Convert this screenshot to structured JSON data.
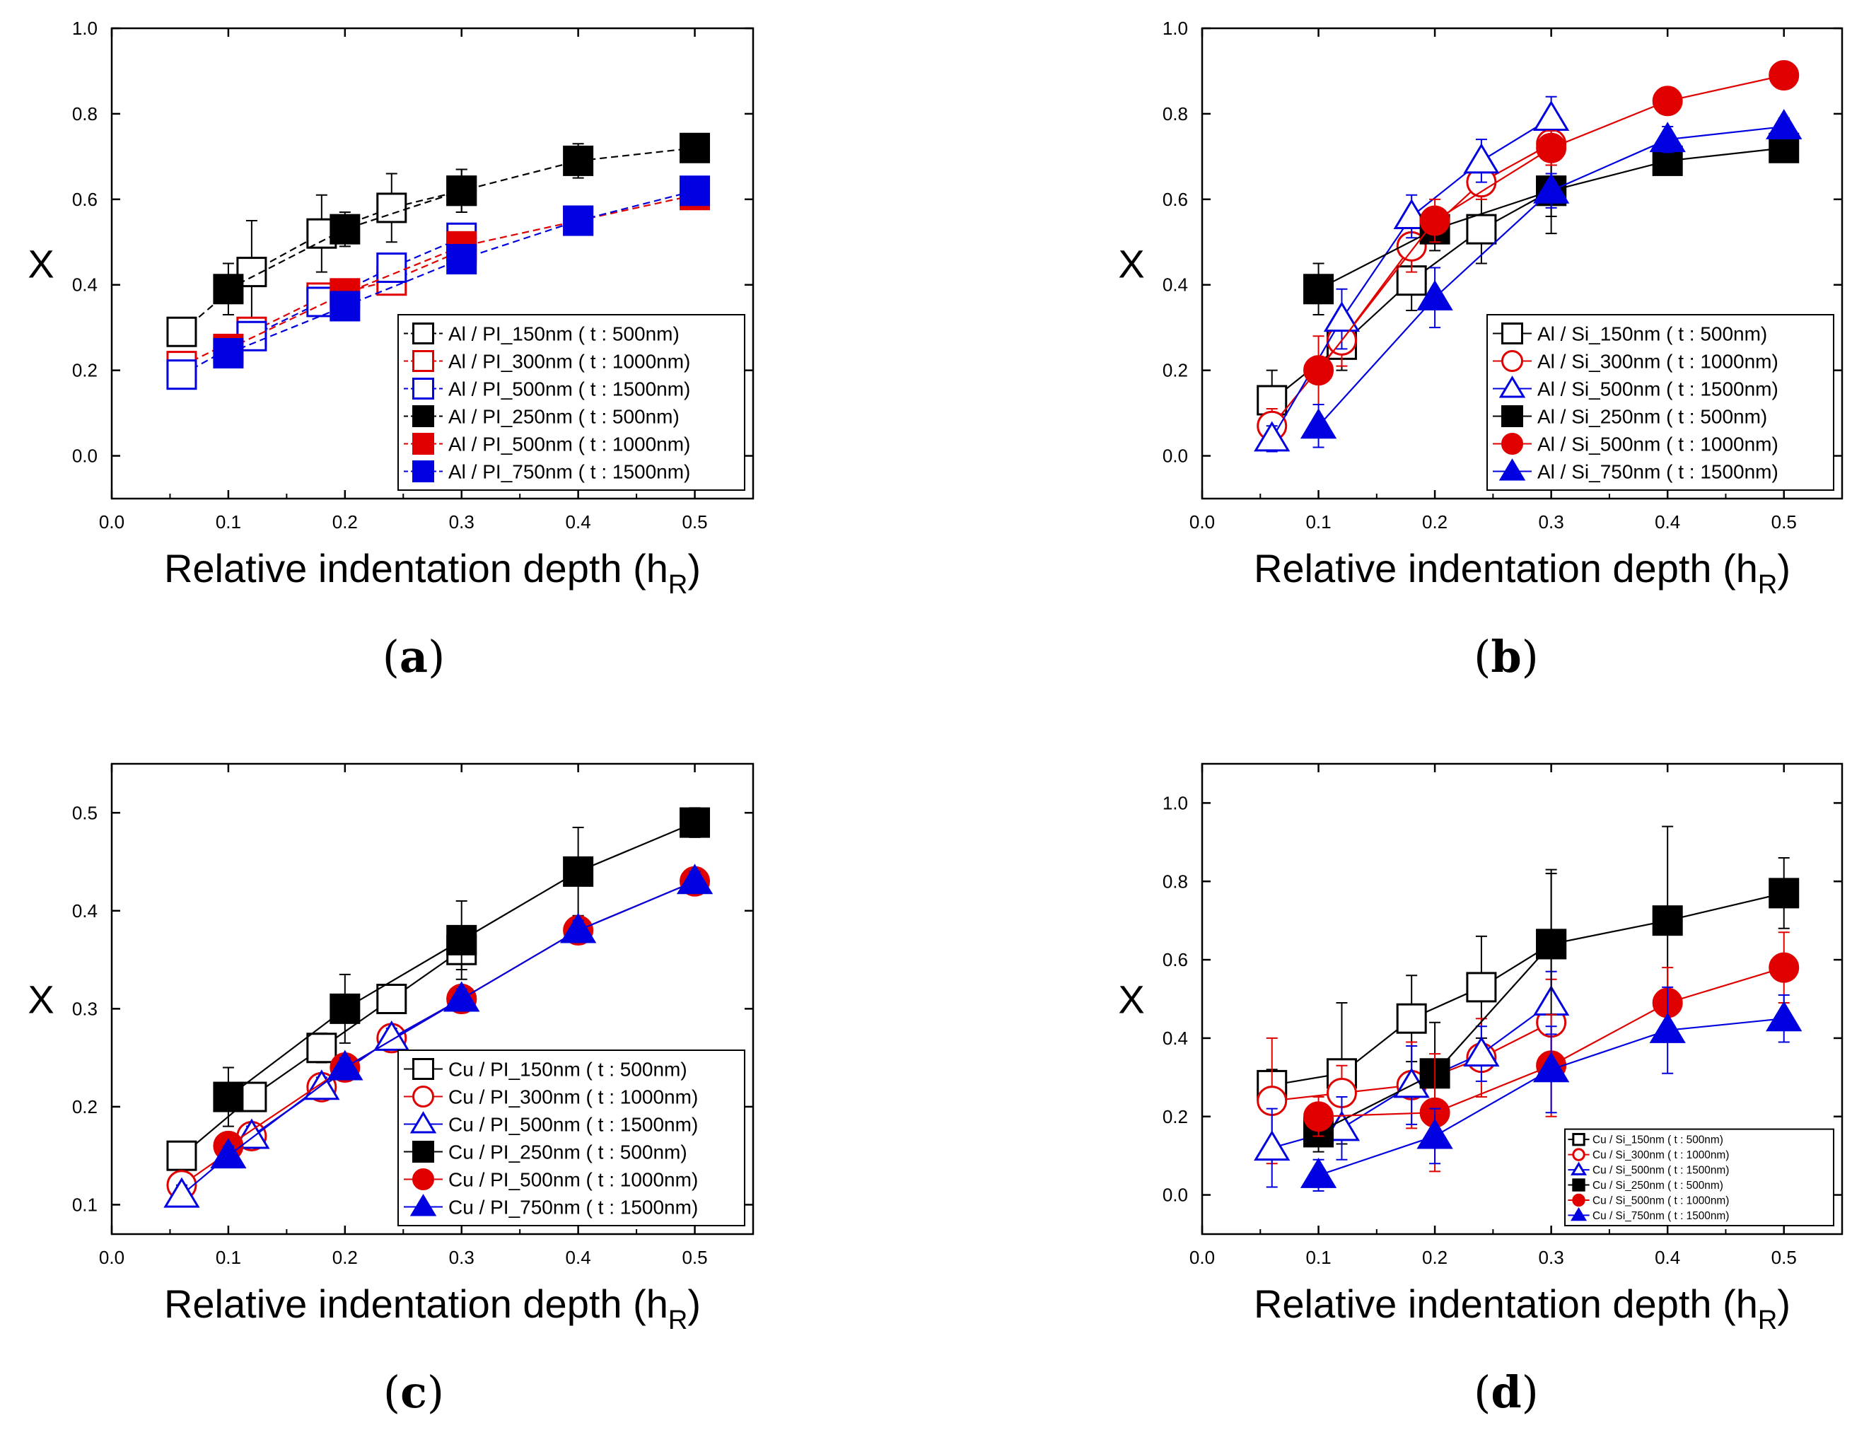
{
  "chart_data": [
    {
      "panel_label": "a",
      "type": "line",
      "xlabel": "Relative indentation depth (h",
      "xlabel_sub": "R",
      "xlabel_close": ")",
      "ylabel": "X",
      "xlim": [
        0.0,
        0.55
      ],
      "ylim": [
        -0.1,
        1.0
      ],
      "xticks": [
        "0.0",
        "0.1",
        "0.2",
        "0.3",
        "0.4",
        "0.5"
      ],
      "yticks": [
        "0.0",
        "0.2",
        "0.4",
        "0.6",
        "0.8",
        "1.0"
      ],
      "xtick_values": [
        0.0,
        0.1,
        0.2,
        0.3,
        0.4,
        0.5
      ],
      "ytick_values": [
        0.0,
        0.2,
        0.4,
        0.6,
        0.8,
        1.0
      ],
      "legend_scale": 1.0,
      "legend_position": "bottom-right",
      "series": [
        {
          "name": "Al / PI_150nm ( t : 500nm)",
          "color": "#000000",
          "marker": "square",
          "filled": false,
          "dashed": true,
          "x": [
            0.06,
            0.12,
            0.18,
            0.24,
            0.3
          ],
          "y": [
            0.29,
            0.43,
            0.52,
            0.58,
            0.62
          ],
          "err": [
            0.02,
            0.12,
            0.09,
            0.08,
            0.05
          ]
        },
        {
          "name": "Al / PI_300nm ( t : 1000nm)",
          "color": "#e00000",
          "marker": "square",
          "filled": false,
          "dashed": true,
          "x": [
            0.06,
            0.12,
            0.18,
            0.24,
            0.3
          ],
          "y": [
            0.21,
            0.29,
            0.37,
            0.41,
            0.48
          ],
          "err": [
            0.03,
            0.02,
            0.03,
            0.02,
            0.03
          ]
        },
        {
          "name": "Al / PI_500nm ( t : 1500nm)",
          "color": "#0000e0",
          "marker": "square",
          "filled": false,
          "dashed": true,
          "x": [
            0.06,
            0.12,
            0.18,
            0.24,
            0.3
          ],
          "y": [
            0.19,
            0.28,
            0.36,
            0.44,
            0.51
          ],
          "err": [
            0.02,
            0.02,
            0.03,
            0.02,
            0.03
          ]
        },
        {
          "name": "Al / PI_250nm ( t : 500nm)",
          "color": "#000000",
          "marker": "square",
          "filled": true,
          "dashed": true,
          "x": [
            0.1,
            0.2,
            0.3,
            0.4,
            0.5
          ],
          "y": [
            0.39,
            0.53,
            0.62,
            0.69,
            0.72
          ],
          "err": [
            0.06,
            0.04,
            0.05,
            0.04,
            0.02
          ]
        },
        {
          "name": "Al / PI_500nm ( t : 1000nm)",
          "color": "#e00000",
          "marker": "square",
          "filled": true,
          "dashed": true,
          "x": [
            0.1,
            0.2,
            0.3,
            0.4,
            0.5
          ],
          "y": [
            0.25,
            0.38,
            0.49,
            0.55,
            0.61
          ],
          "err": [
            0.03,
            0.02,
            0.03,
            0.02,
            0.01
          ]
        },
        {
          "name": "Al / PI_750nm ( t : 1500nm)",
          "color": "#0000e0",
          "marker": "square",
          "filled": true,
          "dashed": true,
          "x": [
            0.1,
            0.2,
            0.3,
            0.4,
            0.5
          ],
          "y": [
            0.24,
            0.35,
            0.46,
            0.55,
            0.62
          ],
          "err": [
            0.02,
            0.02,
            0.02,
            0.01,
            0.01
          ]
        }
      ]
    },
    {
      "panel_label": "b",
      "type": "line",
      "xlabel": "Relative indentation depth (h",
      "xlabel_sub": "R",
      "xlabel_close": ")",
      "ylabel": "X",
      "xlim": [
        0.0,
        0.55
      ],
      "ylim": [
        -0.1,
        1.0
      ],
      "xticks": [
        "0.0",
        "0.1",
        "0.2",
        "0.3",
        "0.4",
        "0.5"
      ],
      "yticks": [
        "0.0",
        "0.2",
        "0.4",
        "0.6",
        "0.8",
        "1.0"
      ],
      "xtick_values": [
        0.0,
        0.1,
        0.2,
        0.3,
        0.4,
        0.5
      ],
      "ytick_values": [
        0.0,
        0.2,
        0.4,
        0.6,
        0.8,
        1.0
      ],
      "legend_scale": 1.0,
      "legend_position": "bottom-right",
      "series": [
        {
          "name": "Al / Si_150nm ( t : 500nm)",
          "color": "#000000",
          "marker": "square",
          "filled": false,
          "dashed": false,
          "x": [
            0.06,
            0.12,
            0.18,
            0.24,
            0.3
          ],
          "y": [
            0.13,
            0.26,
            0.41,
            0.53,
            0.62
          ],
          "err": [
            0.07,
            0.06,
            0.07,
            0.08,
            0.1
          ]
        },
        {
          "name": "Al / Si_300nm ( t : 1000nm)",
          "color": "#e00000",
          "marker": "circle",
          "filled": false,
          "dashed": false,
          "x": [
            0.06,
            0.12,
            0.18,
            0.24,
            0.3
          ],
          "y": [
            0.07,
            0.27,
            0.49,
            0.64,
            0.73
          ],
          "err": [
            0.04,
            0.06,
            0.06,
            0.04,
            0.05
          ]
        },
        {
          "name": "Al / Si_500nm ( t : 1500nm)",
          "color": "#0000e0",
          "marker": "triangle",
          "filled": false,
          "dashed": false,
          "x": [
            0.06,
            0.12,
            0.18,
            0.24,
            0.3
          ],
          "y": [
            0.04,
            0.32,
            0.56,
            0.69,
            0.79
          ],
          "err": [
            0.03,
            0.07,
            0.05,
            0.05,
            0.05
          ]
        },
        {
          "name": "Al / Si_250nm ( t : 500nm)",
          "color": "#000000",
          "marker": "square",
          "filled": true,
          "dashed": false,
          "x": [
            0.1,
            0.2,
            0.3,
            0.4,
            0.5
          ],
          "y": [
            0.39,
            0.53,
            0.62,
            0.69,
            0.72
          ],
          "err": [
            0.06,
            0.05,
            0.06,
            0.03,
            0.02
          ]
        },
        {
          "name": "Al / Si_500nm ( t : 1000nm)",
          "color": "#e00000",
          "marker": "circle",
          "filled": true,
          "dashed": false,
          "x": [
            0.1,
            0.2,
            0.3,
            0.4,
            0.5
          ],
          "y": [
            0.2,
            0.55,
            0.72,
            0.83,
            0.89
          ],
          "err": [
            0.08,
            0.05,
            0.04,
            0.02,
            0.02
          ]
        },
        {
          "name": "Al / Si_750nm ( t : 1500nm)",
          "color": "#0000e0",
          "marker": "triangle",
          "filled": true,
          "dashed": false,
          "x": [
            0.1,
            0.2,
            0.3,
            0.4,
            0.5
          ],
          "y": [
            0.07,
            0.37,
            0.62,
            0.74,
            0.77
          ],
          "err": [
            0.05,
            0.07,
            0.04,
            0.03,
            0.02
          ]
        }
      ]
    },
    {
      "panel_label": "c",
      "type": "line",
      "xlabel": "Relative indentation depth (h",
      "xlabel_sub": "R",
      "xlabel_close": ")",
      "ylabel": "X",
      "xlim": [
        0.0,
        0.55
      ],
      "ylim": [
        0.07,
        0.55
      ],
      "xticks": [
        "0.0",
        "0.1",
        "0.2",
        "0.3",
        "0.4",
        "0.5"
      ],
      "yticks": [
        "0.1",
        "0.2",
        "0.3",
        "0.4",
        "0.5"
      ],
      "xtick_values": [
        0.0,
        0.1,
        0.2,
        0.3,
        0.4,
        0.5
      ],
      "ytick_values": [
        0.1,
        0.2,
        0.3,
        0.4,
        0.5
      ],
      "legend_scale": 1.0,
      "legend_position": "bottom-right",
      "series": [
        {
          "name": "Cu / PI_150nm ( t : 500nm)",
          "color": "#000000",
          "marker": "square",
          "filled": false,
          "dashed": false,
          "x": [
            0.06,
            0.12,
            0.18,
            0.24,
            0.3
          ],
          "y": [
            0.15,
            0.21,
            0.26,
            0.31,
            0.36
          ],
          "err": [
            0.01,
            0.01,
            0.015,
            0.01,
            0.02
          ]
        },
        {
          "name": "Cu / PI_300nm ( t : 1000nm)",
          "color": "#e00000",
          "marker": "circle",
          "filled": false,
          "dashed": false,
          "x": [
            0.06,
            0.12,
            0.18,
            0.24,
            0.3
          ],
          "y": [
            0.12,
            0.17,
            0.22,
            0.27,
            0.31
          ],
          "err": [
            0.01,
            0.01,
            0.01,
            0.01,
            0.01
          ]
        },
        {
          "name": "Cu / PI_500nm ( t : 1500nm)",
          "color": "#0000e0",
          "marker": "triangle",
          "filled": false,
          "dashed": false,
          "x": [
            0.06,
            0.12,
            0.18,
            0.24,
            0.3
          ],
          "y": [
            0.11,
            0.17,
            0.22,
            0.27,
            0.31
          ],
          "err": [
            0.01,
            0.01,
            0.01,
            0.01,
            0.01
          ]
        },
        {
          "name": "Cu / PI_250nm ( t : 500nm)",
          "color": "#000000",
          "marker": "square",
          "filled": true,
          "dashed": false,
          "x": [
            0.1,
            0.2,
            0.3,
            0.4,
            0.5
          ],
          "y": [
            0.21,
            0.3,
            0.37,
            0.44,
            0.49
          ],
          "err": [
            0.03,
            0.035,
            0.04,
            0.045,
            0.015
          ]
        },
        {
          "name": "Cu / PI_500nm ( t : 1000nm)",
          "color": "#e00000",
          "marker": "circle",
          "filled": true,
          "dashed": false,
          "x": [
            0.1,
            0.2,
            0.3,
            0.4,
            0.5
          ],
          "y": [
            0.16,
            0.24,
            0.31,
            0.38,
            0.43
          ],
          "err": [
            0.01,
            0.01,
            0.01,
            0.01,
            0.01
          ]
        },
        {
          "name": "Cu / PI_750nm ( t : 1500nm)",
          "color": "#0000e0",
          "marker": "triangle",
          "filled": true,
          "dashed": false,
          "x": [
            0.1,
            0.2,
            0.3,
            0.4,
            0.5
          ],
          "y": [
            0.15,
            0.24,
            0.31,
            0.38,
            0.43
          ],
          "err": [
            0.01,
            0.01,
            0.01,
            0.01,
            0.01
          ]
        }
      ]
    },
    {
      "panel_label": "d",
      "type": "line",
      "xlabel": "Relative indentation depth (h",
      "xlabel_sub": "R",
      "xlabel_close": ")",
      "ylabel": "X",
      "xlim": [
        0.0,
        0.55
      ],
      "ylim": [
        -0.1,
        1.1
      ],
      "xticks": [
        "0.0",
        "0.1",
        "0.2",
        "0.3",
        "0.4",
        "0.5"
      ],
      "yticks": [
        "0.0",
        "0.2",
        "0.4",
        "0.6",
        "0.8",
        "1.0"
      ],
      "xtick_values": [
        0.0,
        0.1,
        0.2,
        0.3,
        0.4,
        0.5
      ],
      "ytick_values": [
        0.0,
        0.2,
        0.4,
        0.6,
        0.8,
        1.0
      ],
      "legend_scale": 0.55,
      "legend_position": "bottom-right",
      "series": [
        {
          "name": "Cu / Si_150nm ( t : 500nm)",
          "color": "#000000",
          "marker": "square",
          "filled": false,
          "dashed": false,
          "x": [
            0.06,
            0.12,
            0.18,
            0.24,
            0.3
          ],
          "y": [
            0.28,
            0.31,
            0.45,
            0.53,
            0.64
          ],
          "err": [
            0.04,
            0.18,
            0.11,
            0.13,
            0.19
          ]
        },
        {
          "name": "Cu / Si_300nm ( t : 1000nm)",
          "color": "#e00000",
          "marker": "circle",
          "filled": false,
          "dashed": false,
          "x": [
            0.06,
            0.12,
            0.18,
            0.24,
            0.3
          ],
          "y": [
            0.24,
            0.26,
            0.28,
            0.35,
            0.44
          ],
          "err": [
            0.16,
            0.07,
            0.11,
            0.1,
            0.11
          ]
        },
        {
          "name": "Cu / Si_500nm ( t : 1500nm)",
          "color": "#0000e0",
          "marker": "triangle",
          "filled": false,
          "dashed": false,
          "x": [
            0.06,
            0.12,
            0.18,
            0.24,
            0.3
          ],
          "y": [
            0.12,
            0.17,
            0.28,
            0.36,
            0.49
          ],
          "err": [
            0.1,
            0.08,
            0.1,
            0.07,
            0.08
          ]
        },
        {
          "name": "Cu / Si_250nm ( t : 500nm)",
          "color": "#000000",
          "marker": "square",
          "filled": true,
          "dashed": false,
          "x": [
            0.1,
            0.2,
            0.3,
            0.4,
            0.5
          ],
          "y": [
            0.16,
            0.31,
            0.64,
            0.7,
            0.77
          ],
          "err": [
            0.05,
            0.13,
            0.18,
            0.24,
            0.09
          ]
        },
        {
          "name": "Cu / Si_500nm ( t : 1000nm)",
          "color": "#e00000",
          "marker": "circle",
          "filled": true,
          "dashed": false,
          "x": [
            0.1,
            0.2,
            0.3,
            0.4,
            0.5
          ],
          "y": [
            0.2,
            0.21,
            0.33,
            0.49,
            0.58
          ],
          "err": [
            0.05,
            0.15,
            0.13,
            0.09,
            0.09
          ]
        },
        {
          "name": "Cu / Si_750nm ( t : 1500nm)",
          "color": "#0000e0",
          "marker": "triangle",
          "filled": true,
          "dashed": false,
          "x": [
            0.1,
            0.2,
            0.3,
            0.4,
            0.5
          ],
          "y": [
            0.05,
            0.15,
            0.32,
            0.42,
            0.45
          ],
          "err": [
            0.04,
            0.07,
            0.11,
            0.11,
            0.06
          ]
        }
      ]
    }
  ]
}
